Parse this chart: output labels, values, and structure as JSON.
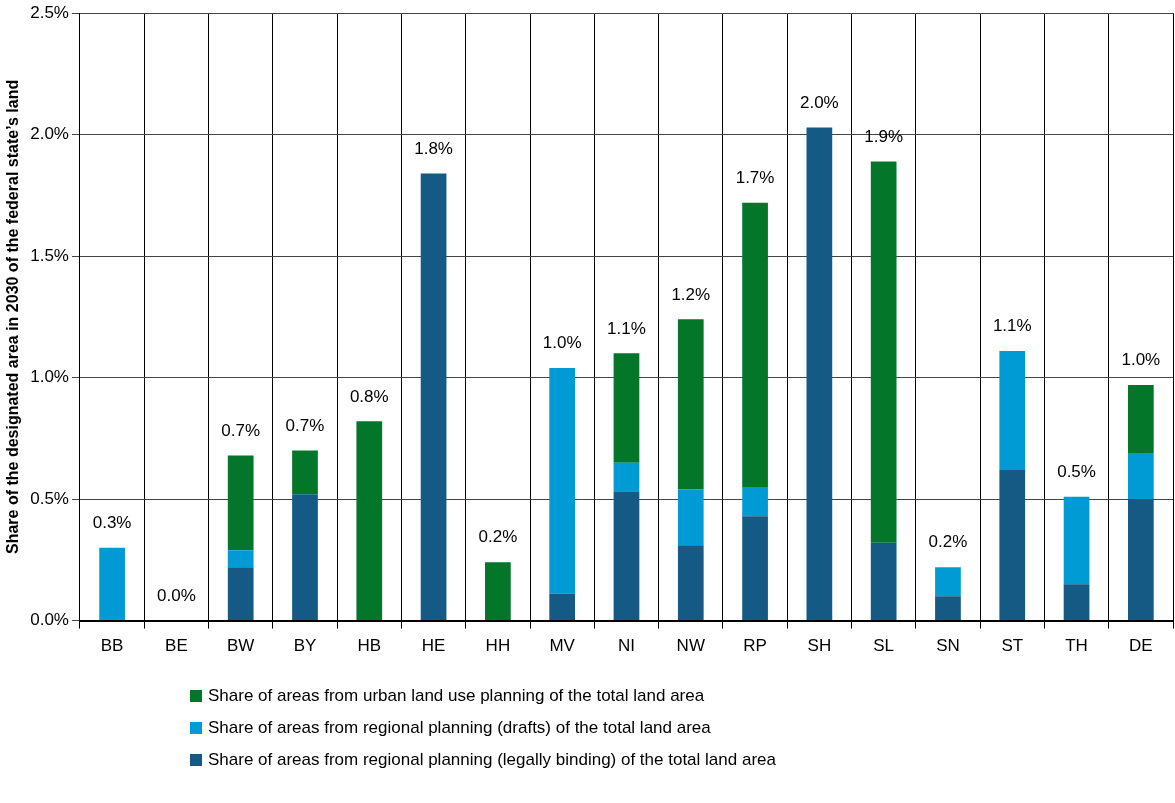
{
  "chart_data": {
    "type": "bar",
    "stacked": true,
    "ylabel": "Share of the designated area in 2030 of the federal state’s land",
    "categories": [
      "BB",
      "BE",
      "BW",
      "BY",
      "HB",
      "HE",
      "HH",
      "MV",
      "NI",
      "NW",
      "RP",
      "SH",
      "SL",
      "SN",
      "ST",
      "TH",
      "DE"
    ],
    "series": [
      {
        "name": "Share of areas from regional planning (legally binding) of the total land area",
        "color": "#145a84",
        "values": [
          0,
          0,
          0.22,
          0.52,
          0,
          1.84,
          0,
          0.11,
          0.53,
          0.31,
          0.43,
          2.03,
          0.32,
          0.1,
          0.62,
          0.15,
          0.5
        ]
      },
      {
        "name": "Share of areas from regional planning (drafts) of the total land area",
        "color": "#009bd4",
        "values": [
          0.3,
          0,
          0.07,
          0,
          0,
          0,
          0,
          0.93,
          0.12,
          0.23,
          0.12,
          0,
          0,
          0.12,
          0.49,
          0.36,
          0.19
        ]
      },
      {
        "name": "Share of areas from urban land use planning of the total land area",
        "color": "#03762a",
        "values": [
          0,
          0,
          0.39,
          0.18,
          0.82,
          0,
          0.24,
          0,
          0.45,
          0.7,
          1.17,
          0,
          1.57,
          0,
          0,
          0,
          0.28
        ]
      }
    ],
    "totals": [
      "0.3%",
      "0.0%",
      "0.7%",
      "0.7%",
      "0.8%",
      "1.8%",
      "0.2%",
      "1.0%",
      "1.1%",
      "1.2%",
      "1.7%",
      "2.0%",
      "1.9%",
      "0.2%",
      "1.1%",
      "0.5%",
      "1.0%"
    ],
    "ylim": [
      0,
      2.5
    ],
    "yticks": [
      {
        "value": 0,
        "label": "0.0%"
      },
      {
        "value": 0.5,
        "label": "0.5%"
      },
      {
        "value": 1,
        "label": "1.0%"
      },
      {
        "value": 1.5,
        "label": "1.5%"
      },
      {
        "value": 2,
        "label": "2.0%"
      },
      {
        "value": 2.5,
        "label": "2.5%"
      }
    ],
    "grid": true,
    "legend": "bottom"
  }
}
